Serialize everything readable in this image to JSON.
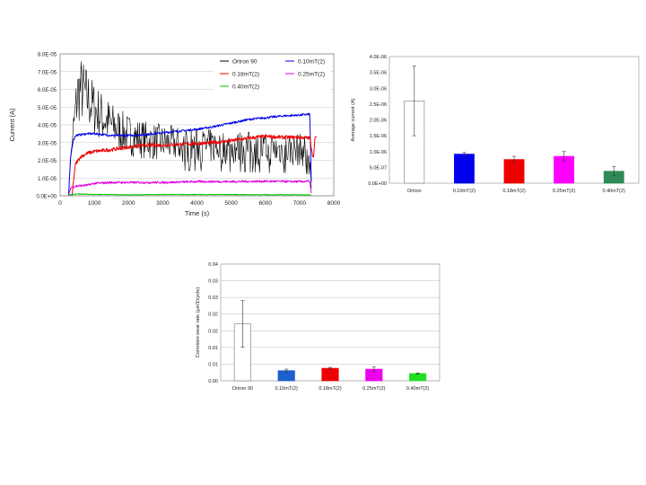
{
  "chart_data": [
    {
      "type": "line",
      "title": "",
      "xlabel": "Time (s)",
      "ylabel": "Current (A)",
      "xlim": [
        0,
        8000
      ],
      "ylim": [
        0,
        8e-05
      ],
      "x_ticks": [
        "0",
        "1000",
        "2000",
        "3000",
        "4000",
        "5000",
        "6000",
        "7000",
        "8000"
      ],
      "y_ticks": [
        "0.0E+00",
        "1.0E-05",
        "2.0E-05",
        "3.0E-05",
        "4.0E-05",
        "5.0E-05",
        "6.0E-05",
        "7.0E-05",
        "8.0E-05"
      ],
      "grid": "horizontal",
      "legend_position": "top-right",
      "series": [
        {
          "name": "Ortron 90",
          "color": "#000000",
          "noisy": true,
          "x": [
            250,
            300,
            380,
            450,
            520,
            600,
            700,
            800,
            900,
            1000,
            1200,
            1500,
            1800,
            2200,
            2600,
            3000,
            3500,
            4000,
            4500,
            5000,
            5500,
            6000,
            6500,
            7000,
            7200,
            7300,
            7350
          ],
          "y": [
            0.0,
            2e-05,
            3.5e-05,
            4.8e-05,
            5.8e-05,
            6e-05,
            5.8e-05,
            5.5e-05,
            5.2e-05,
            4.9e-05,
            4.5e-05,
            4e-05,
            3.6e-05,
            3.3e-05,
            3.1e-05,
            3e-05,
            2.9e-05,
            2.8e-05,
            2.8e-05,
            2.7e-05,
            2.7e-05,
            2.6e-05,
            2.6e-05,
            2.6e-05,
            2.5e-05,
            2.4e-05,
            0.0
          ]
        },
        {
          "name": "0.10mT(2)",
          "color": "#0000ee",
          "noisy": false,
          "x": [
            250,
            300,
            340,
            380,
            450,
            600,
            800,
            1000,
            1500,
            2000,
            2500,
            3000,
            3500,
            4000,
            4500,
            5000,
            5500,
            6000,
            6500,
            7000,
            7300,
            7350
          ],
          "y": [
            0.0,
            2e-05,
            2.6e-05,
            3.1e-05,
            3.4e-05,
            3.45e-05,
            3.5e-05,
            3.5e-05,
            3.4e-05,
            3.4e-05,
            3.45e-05,
            3.55e-05,
            3.65e-05,
            3.75e-05,
            3.9e-05,
            4.1e-05,
            4.3e-05,
            4.4e-05,
            4.5e-05,
            4.55e-05,
            4.6e-05,
            0.0
          ]
        },
        {
          "name": "0.18mT(2)",
          "color": "#ee0000",
          "noisy": false,
          "x": [
            350,
            400,
            450,
            600,
            800,
            1000,
            1500,
            2000,
            2500,
            3000,
            3500,
            4000,
            4500,
            5000,
            5500,
            6000,
            6500,
            7000,
            7300,
            7400,
            7450,
            7500
          ],
          "y": [
            0.0,
            1e-05,
            1.8e-05,
            2.2e-05,
            2.4e-05,
            2.5e-05,
            2.6e-05,
            2.75e-05,
            2.85e-05,
            2.85e-05,
            2.9e-05,
            2.95e-05,
            3e-05,
            3.1e-05,
            3.25e-05,
            3.35e-05,
            3.3e-05,
            3.3e-05,
            3.25e-05,
            2.1e-05,
            3.2e-05,
            3.4e-05
          ]
        },
        {
          "name": "0.25mT(2)",
          "color": "#dd00dd",
          "noisy": false,
          "x": [
            250,
            300,
            350,
            500,
            800,
            1000,
            1500,
            2000,
            3000,
            4000,
            5000,
            6000,
            7000,
            7300,
            7350
          ],
          "y": [
            0.0,
            4e-06,
            5e-06,
            5.5e-06,
            6e-06,
            7e-06,
            7.5e-06,
            7.5e-06,
            7.5e-06,
            8e-06,
            8e-06,
            8.2e-06,
            8e-06,
            8.2e-06,
            0.0
          ]
        },
        {
          "name": "0.40mT(2)",
          "color": "#00cc00",
          "noisy": false,
          "x": [
            250,
            500,
            1000,
            2000,
            3000,
            4000,
            5000,
            6000,
            7000,
            7300,
            7350
          ],
          "y": [
            5e-07,
            1e-06,
            8e-07,
            6e-07,
            7e-07,
            7e-07,
            7e-07,
            6e-07,
            6e-07,
            5e-07,
            0.0
          ]
        }
      ]
    },
    {
      "type": "bar",
      "title": "",
      "xlabel": "",
      "ylabel": "Average current (A)",
      "ylim": [
        0,
        4e-06
      ],
      "y_ticks": [
        "0.0E+00",
        "5.0E-07",
        "1.0E-06",
        "1.5E-06",
        "2.0E-06",
        "2.5E-06",
        "3.0E-06",
        "3.5E-06",
        "4.0E-06"
      ],
      "grid": "none",
      "categories": [
        "Ortron",
        "0.10mT(2)",
        "0.18mT(2)",
        "0.25mT(2)",
        "0.40mT(2)"
      ],
      "values": [
        2.6e-06,
        9.2e-07,
        7.5e-07,
        8.5e-07,
        3.8e-07
      ],
      "errors": [
        1.1e-06,
        5e-08,
        1e-07,
        1.5e-07,
        1.5e-07
      ],
      "colors": [
        "#ffffff",
        "#0000ee",
        "#ee0000",
        "#ff00ff",
        "#2e8b57"
      ]
    },
    {
      "type": "bar",
      "title": "",
      "xlabel": "",
      "ylabel": "Corrosion wear rate (µm3/cycle)",
      "ylim": [
        0,
        0.04
      ],
      "y_ticks": [
        "0.00",
        "0.01",
        "0.01",
        "0.02",
        "0.02",
        "0.03",
        "0.03",
        "0.04"
      ],
      "grid": "horizontal",
      "categories": [
        "Ortron 90",
        "0.10mT(2)",
        "0.18mT(2)",
        "0.25mT(2)",
        "0.40mT(2)"
      ],
      "values": [
        0.0195,
        0.0035,
        0.0043,
        0.004,
        0.0025
      ],
      "errors": [
        0.008,
        0.0005,
        0.0003,
        0.0007,
        0.0002
      ],
      "colors": [
        "#ffffff",
        "#1e5fd0",
        "#ee0000",
        "#ee00ee",
        "#22dd22"
      ]
    }
  ]
}
